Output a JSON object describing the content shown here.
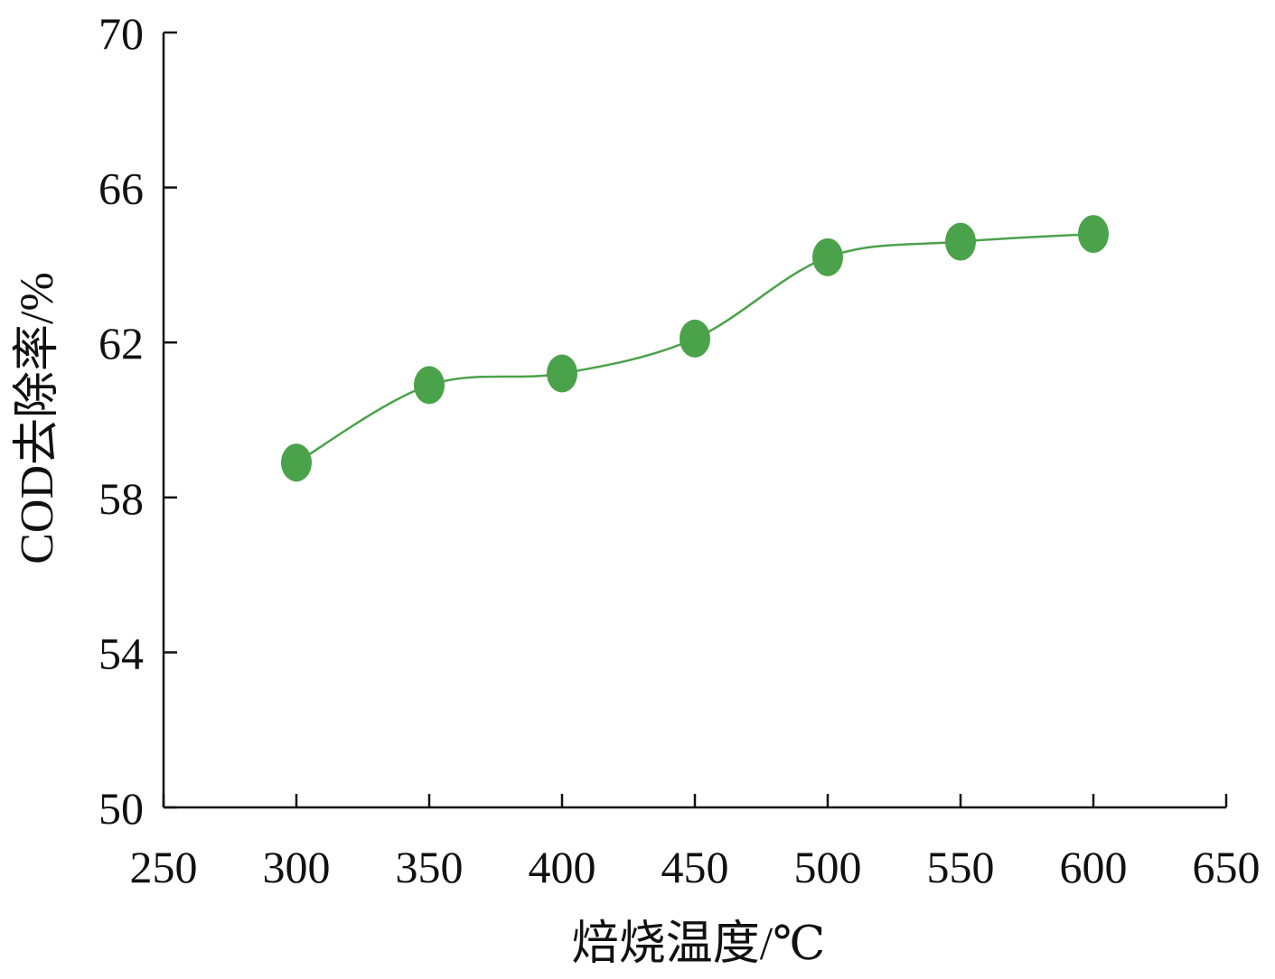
{
  "chart_data": {
    "type": "line",
    "xlabel": "焙烧温度/℃",
    "ylabel": "COD去除率/%",
    "xlim": [
      250,
      650
    ],
    "ylim": [
      50,
      70
    ],
    "xticks": [
      250,
      300,
      350,
      400,
      450,
      500,
      550,
      600,
      650
    ],
    "yticks": [
      50,
      54,
      58,
      62,
      66,
      70
    ],
    "smooth": true,
    "grid": false,
    "series": [
      {
        "x": [
          300,
          350,
          400,
          450,
          500,
          550,
          600
        ],
        "y": [
          58.9,
          60.9,
          61.2,
          62.1,
          64.2,
          64.6,
          64.8
        ],
        "color": "#4aa24a"
      }
    ]
  }
}
